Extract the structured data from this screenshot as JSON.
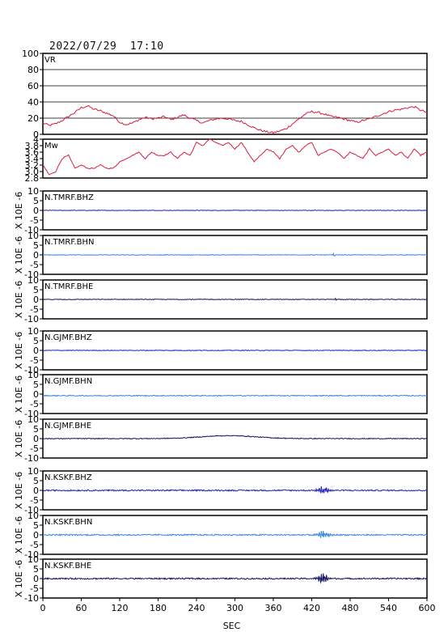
{
  "header": {
    "timestamp": "2022/07/29  17:10"
  },
  "chart_data": {
    "type": "line",
    "xlabel": "SEC",
    "xlim": [
      0,
      600
    ],
    "xticks": [
      0,
      60,
      120,
      180,
      240,
      300,
      360,
      420,
      480,
      540,
      600
    ],
    "grid": false,
    "panels": [
      {
        "label": "VR",
        "ylim": [
          0,
          100
        ],
        "yticks": [
          0,
          20,
          40,
          60,
          80,
          100
        ],
        "hgrid": [
          20,
          40,
          60,
          80
        ],
        "color": "#d81b3c",
        "x": [
          0,
          10,
          20,
          30,
          40,
          50,
          60,
          70,
          80,
          90,
          100,
          110,
          120,
          130,
          140,
          150,
          160,
          170,
          180,
          190,
          200,
          210,
          220,
          230,
          240,
          250,
          260,
          270,
          280,
          290,
          300,
          310,
          320,
          330,
          340,
          350,
          360,
          370,
          380,
          390,
          400,
          410,
          420,
          430,
          440,
          450,
          460,
          470,
          480,
          490,
          500,
          510,
          520,
          530,
          540,
          550,
          560,
          570,
          580,
          590,
          600
        ],
        "y": [
          14,
          11,
          13,
          17,
          22,
          27,
          33,
          35,
          31,
          29,
          26,
          23,
          15,
          12,
          14,
          18,
          21,
          19,
          20,
          22,
          18,
          21,
          24,
          20,
          17,
          14,
          17,
          19,
          20,
          19,
          17,
          16,
          12,
          8,
          5,
          3,
          2,
          4,
          7,
          13,
          19,
          25,
          28,
          27,
          25,
          22,
          21,
          19,
          17,
          15,
          17,
          19,
          22,
          25,
          28,
          30,
          31,
          33,
          34,
          30,
          27
        ]
      },
      {
        "label": "Mw",
        "ylim": [
          2.8,
          4.0
        ],
        "yticks": [
          2.8,
          3.0,
          3.2,
          3.4,
          3.6,
          3.8,
          4.0
        ],
        "ytick_labels": [
          "2.8",
          "3.0",
          "3.2",
          "3.4",
          "3.6",
          "3.8",
          "4"
        ],
        "color": "#d81b3c",
        "x": [
          0,
          10,
          20,
          30,
          40,
          50,
          60,
          70,
          80,
          90,
          100,
          110,
          120,
          130,
          140,
          150,
          160,
          170,
          180,
          190,
          200,
          210,
          220,
          230,
          240,
          250,
          260,
          270,
          280,
          290,
          300,
          310,
          320,
          330,
          340,
          350,
          360,
          370,
          380,
          390,
          400,
          410,
          420,
          430,
          440,
          450,
          460,
          470,
          480,
          490,
          500,
          510,
          520,
          530,
          540,
          550,
          560,
          570,
          580,
          590,
          600
        ],
        "y": [
          3.2,
          2.9,
          3.0,
          3.4,
          3.5,
          3.1,
          3.2,
          3.1,
          3.1,
          3.2,
          3.1,
          3.1,
          3.3,
          3.4,
          3.5,
          3.6,
          3.4,
          3.6,
          3.5,
          3.5,
          3.6,
          3.4,
          3.6,
          3.5,
          3.9,
          3.8,
          4.0,
          3.9,
          3.8,
          3.9,
          3.7,
          3.9,
          3.6,
          3.3,
          3.5,
          3.7,
          3.6,
          3.4,
          3.7,
          3.8,
          3.6,
          3.8,
          3.9,
          3.5,
          3.6,
          3.7,
          3.6,
          3.4,
          3.6,
          3.5,
          3.4,
          3.7,
          3.5,
          3.6,
          3.7,
          3.5,
          3.6,
          3.4,
          3.7,
          3.5,
          3.6
        ]
      },
      {
        "label": "N.TMRF.BHZ",
        "ylim": [
          -10,
          10
        ],
        "yticks": [
          -10,
          -5,
          0,
          5,
          10
        ],
        "color": "#1f1fbf",
        "noise": 0.12,
        "events": []
      },
      {
        "label": "N.TMRF.BHN",
        "ylim": [
          -10,
          10
        ],
        "yticks": [
          -10,
          -5,
          0,
          5,
          10
        ],
        "color": "#3a86d8",
        "noise": 0.15,
        "events": [
          {
            "t": 455,
            "amp": 1.8,
            "width": 1.5
          }
        ]
      },
      {
        "label": "N.TMRF.BHE",
        "ylim": [
          -10,
          10
        ],
        "yticks": [
          -10,
          -5,
          0,
          5,
          10
        ],
        "color": "#101060",
        "noise": 0.15,
        "events": [
          {
            "t": 458,
            "amp": 0.8,
            "width": 2
          }
        ]
      },
      {
        "label": "N.GJMF.BHZ",
        "ylim": [
          -10,
          10
        ],
        "yticks": [
          -10,
          -5,
          0,
          5,
          10
        ],
        "color": "#1f1fbf",
        "noise": 0.15,
        "events": []
      },
      {
        "label": "N.GJMF.BHN",
        "ylim": [
          -10,
          10
        ],
        "yticks": [
          -10,
          -5,
          0,
          5,
          10
        ],
        "color": "#3a86d8",
        "noise": 0.25,
        "offset": -0.8,
        "events": []
      },
      {
        "label": "N.GJMF.BHE",
        "ylim": [
          -10,
          10
        ],
        "yticks": [
          -10,
          -5,
          0,
          5,
          10
        ],
        "color": "#101060",
        "noise": 0.2,
        "drift": {
          "center": 290,
          "amp": 1.5,
          "width": 60
        },
        "events": []
      },
      {
        "label": "N.KSKF.BHZ",
        "ylim": [
          -10,
          10
        ],
        "yticks": [
          -10,
          -5,
          0,
          5,
          10
        ],
        "color": "#1f1fbf",
        "noise": 0.35,
        "events": [
          {
            "t": 438,
            "amp": 2.2,
            "width": 10
          }
        ]
      },
      {
        "label": "N.KSKF.BHN",
        "ylim": [
          -10,
          10
        ],
        "yticks": [
          -10,
          -5,
          0,
          5,
          10
        ],
        "color": "#3a86d8",
        "noise": 0.35,
        "events": [
          {
            "t": 438,
            "amp": 2.6,
            "width": 10
          }
        ]
      },
      {
        "label": "N.KSKF.BHE",
        "ylim": [
          -10,
          10
        ],
        "yticks": [
          -10,
          -5,
          0,
          5,
          10
        ],
        "color": "#101060",
        "noise": 0.35,
        "events": [
          {
            "t": 438,
            "amp": 3.5,
            "width": 9
          }
        ]
      }
    ],
    "seismo_ylabel": "X 10E -6"
  }
}
